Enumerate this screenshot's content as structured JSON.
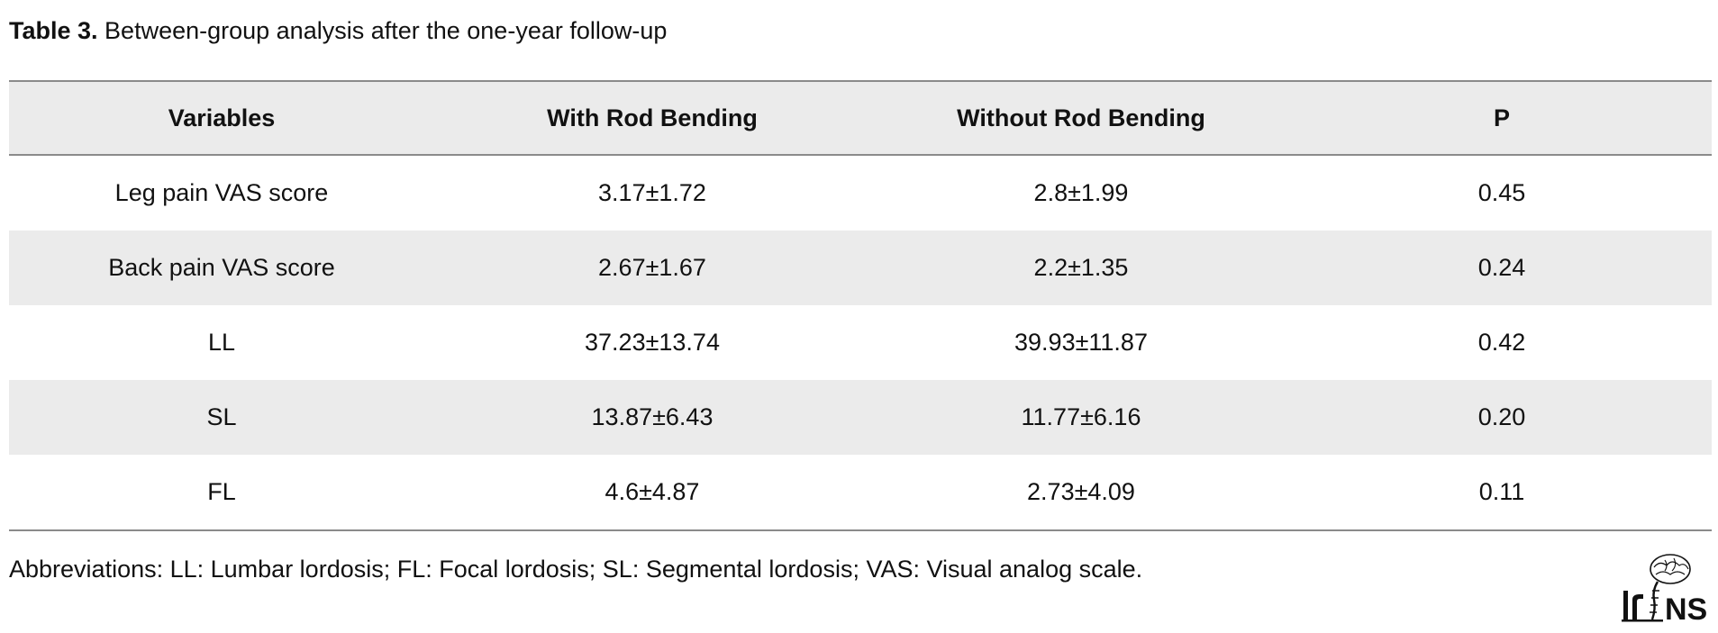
{
  "caption": {
    "label": "Table 3.",
    "text": " Between-group analysis after the one-year follow-up"
  },
  "table": {
    "headers": [
      "Variables",
      "With Rod Bending",
      "Without Rod Bending",
      "P"
    ],
    "rows": [
      [
        "Leg pain VAS score",
        "3.17±1.72",
        "2.8±1.99",
        "0.45"
      ],
      [
        "Back pain VAS score",
        "2.67±1.67",
        "2.2±1.35",
        "0.24"
      ],
      [
        "LL",
        "37.23±13.74",
        "39.93±11.87",
        "0.42"
      ],
      [
        "SL",
        "13.87±6.43",
        "11.77±6.16",
        "0.20"
      ],
      [
        "FL",
        "4.6±4.87",
        "2.73±4.09",
        "0.11"
      ]
    ]
  },
  "footnote": "Abbreviations: LL: Lumbar lordosis; FL: Focal lordosis; SL: Segmental lordosis; VAS: Visual analog scale.",
  "logo": {
    "icon": "journal-logo-icon",
    "text": "NS"
  }
}
